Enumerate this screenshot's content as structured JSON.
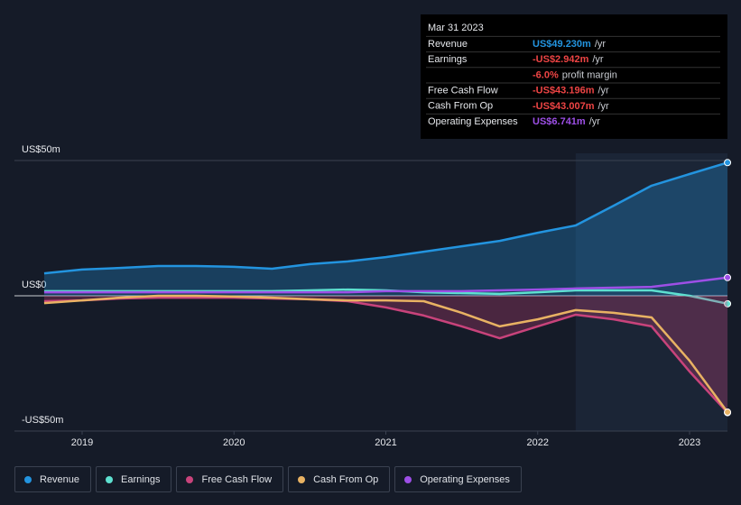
{
  "chart_data": {
    "type": "line",
    "x": [
      2018.75,
      2019,
      2019.25,
      2019.5,
      2019.75,
      2020,
      2020.25,
      2020.5,
      2020.75,
      2021,
      2021.25,
      2021.5,
      2021.75,
      2022,
      2022.25,
      2022.5,
      2022.75,
      2023,
      2023.25
    ],
    "xlim": [
      2018.5,
      2023.25
    ],
    "xticks": [
      2019,
      2020,
      2021,
      2022,
      2023
    ],
    "ylim": [
      -50,
      50
    ],
    "yticks": [
      {
        "value": -50,
        "label": "-US$50m"
      },
      {
        "value": 0,
        "label": "US$0"
      },
      {
        "value": 50,
        "label": "US$50m"
      }
    ],
    "series": [
      {
        "name": "Revenue",
        "color": "#2394df",
        "area": true,
        "values": [
          8.3,
          9.7,
          10.3,
          11.0,
          11.0,
          10.7,
          10.0,
          11.7,
          12.7,
          14.3,
          16.3,
          18.3,
          20.3,
          23.3,
          26.0,
          33.3,
          40.7,
          45.0,
          49.23
        ]
      },
      {
        "name": "Earnings",
        "color": "#5ee0d0",
        "values": [
          1.7,
          1.7,
          1.7,
          1.7,
          1.7,
          1.7,
          1.7,
          2.0,
          2.3,
          2.0,
          1.3,
          1.0,
          0.7,
          1.3,
          2.0,
          2.0,
          2.0,
          0,
          -2.942
        ]
      },
      {
        "name": "Free Cash Flow",
        "color": "#c8437b",
        "area": true,
        "values": [
          -2.0,
          -1.7,
          -1.0,
          -0.7,
          -0.7,
          -0.7,
          -1.0,
          -1.3,
          -2.0,
          -4.3,
          -7.3,
          -11.3,
          -15.7,
          -11.3,
          -7.0,
          -8.7,
          -11.3,
          -28.0,
          -43.196
        ]
      },
      {
        "name": "Cash From Op",
        "color": "#e8b263",
        "values": [
          -2.7,
          -1.7,
          -0.7,
          0,
          0,
          -0.3,
          -0.7,
          -1.3,
          -1.7,
          -1.7,
          -2.0,
          -6.3,
          -11.3,
          -8.7,
          -5.3,
          -6.3,
          -8.0,
          -24.0,
          -43.007
        ]
      },
      {
        "name": "Operating Expenses",
        "color": "#9d4fe6",
        "values": [
          1.3,
          1.3,
          1.3,
          1.3,
          1.3,
          1.3,
          1.3,
          1.3,
          1.3,
          1.7,
          1.7,
          1.7,
          2.0,
          2.3,
          2.7,
          3.0,
          3.3,
          5.0,
          6.741
        ]
      }
    ],
    "highlight_from": 2022.25
  },
  "tooltip": {
    "title": "Mar 31 2023",
    "rows": [
      {
        "label": "Revenue",
        "value": "US$49.230m",
        "unit": "/yr",
        "color": "#2394df"
      },
      {
        "label": "Earnings",
        "value": "-US$2.942m",
        "unit": "/yr",
        "color": "#ee4444"
      },
      {
        "value": "-6.0%",
        "unit": "profit margin",
        "color": "#ee4444"
      },
      {
        "label": "Free Cash Flow",
        "value": "-US$43.196m",
        "unit": "/yr",
        "color": "#ee4444"
      },
      {
        "label": "Cash From Op",
        "value": "-US$43.007m",
        "unit": "/yr",
        "color": "#ee4444"
      },
      {
        "label": "Operating Expenses",
        "value": "US$6.741m",
        "unit": "/yr",
        "color": "#9d4fe6"
      }
    ]
  }
}
